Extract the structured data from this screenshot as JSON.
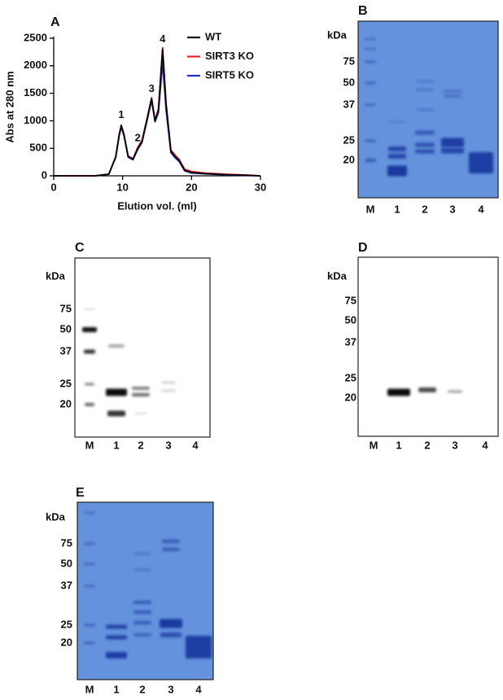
{
  "chart_data": {
    "type": "line",
    "panel": "A",
    "xlabel": "Elution vol. (ml)",
    "ylabel": "Abs at 280 nm",
    "xlim": [
      0,
      30
    ],
    "ylim": [
      0,
      2500
    ],
    "xticks": [
      0,
      10,
      20,
      30
    ],
    "yticks": [
      0,
      500,
      1000,
      1500,
      2000,
      2500
    ],
    "x": [
      0,
      2,
      4,
      6,
      8,
      9,
      9.5,
      9.8,
      10.2,
      10.8,
      11.5,
      12.2,
      12.8,
      13.5,
      14.2,
      14.7,
      15.2,
      15.8,
      16.3,
      17,
      17.6,
      18.2,
      19,
      20,
      22,
      25,
      28,
      30
    ],
    "series": [
      {
        "name": "WT",
        "color": "#000000",
        "values": [
          0,
          0,
          0,
          0,
          30,
          350,
          750,
          920,
          750,
          350,
          300,
          500,
          620,
          1000,
          1400,
          1000,
          1200,
          2300,
          1300,
          450,
          350,
          280,
          100,
          60,
          40,
          20,
          10,
          0
        ]
      },
      {
        "name": "SIRT3 KO",
        "color": "#e8202a",
        "values": [
          0,
          0,
          0,
          0,
          30,
          340,
          740,
          900,
          740,
          360,
          310,
          520,
          640,
          1020,
          1420,
          1010,
          1220,
          2330,
          1330,
          470,
          380,
          300,
          120,
          80,
          50,
          30,
          15,
          0
        ]
      },
      {
        "name": "SIRT5 KO",
        "color": "#2b2bc8",
        "values": [
          0,
          0,
          0,
          0,
          30,
          330,
          720,
          880,
          720,
          340,
          290,
          480,
          600,
          980,
          1370,
          980,
          1150,
          2050,
          1200,
          420,
          330,
          260,
          90,
          50,
          35,
          15,
          5,
          0
        ]
      }
    ],
    "annotations": [
      {
        "text": "1",
        "x": 9.8,
        "y": 920
      },
      {
        "text": "2",
        "x": 12.2,
        "y": 500
      },
      {
        "text": "3",
        "x": 14.2,
        "y": 1400
      },
      {
        "text": "4",
        "x": 15.8,
        "y": 2300
      }
    ],
    "legend": "upper right",
    "grid": false
  },
  "gels": [
    {
      "panel": "B",
      "unit": "kDa",
      "markers": [
        75,
        50,
        37,
        25,
        20
      ],
      "lanes": [
        "M",
        "1",
        "2",
        "3",
        "4"
      ]
    },
    {
      "panel": "C",
      "unit": "kDa",
      "markers": [
        75,
        50,
        37,
        25,
        20
      ],
      "lanes": [
        "M",
        "1",
        "2",
        "3",
        "4"
      ]
    },
    {
      "panel": "D",
      "unit": "kDa",
      "markers": [
        75,
        50,
        37,
        25,
        20
      ],
      "lanes": [
        "M",
        "1",
        "2",
        "3",
        "4"
      ]
    },
    {
      "panel": "E",
      "unit": "kDa",
      "markers": [
        75,
        50,
        37,
        25,
        20
      ],
      "lanes": [
        "M",
        "1",
        "2",
        "3",
        "4"
      ]
    }
  ]
}
